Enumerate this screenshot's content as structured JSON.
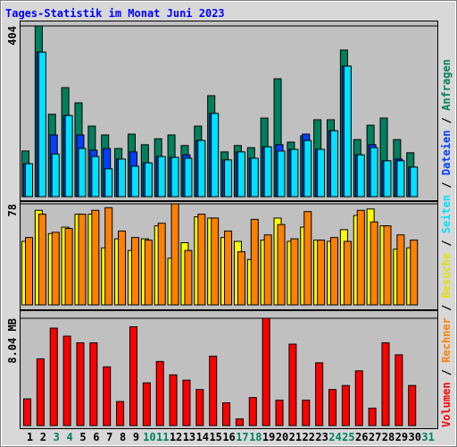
{
  "chart_data": {
    "type": "bar",
    "title": "Tages-Statistik im Monat Juni 2023",
    "categories": [
      "1",
      "2",
      "3",
      "4",
      "5",
      "6",
      "7",
      "8",
      "9",
      "10",
      "11",
      "12",
      "13",
      "14",
      "15",
      "16",
      "17",
      "18",
      "19",
      "20",
      "21",
      "22",
      "23",
      "24",
      "25",
      "26",
      "27",
      "28",
      "29",
      "30",
      "31"
    ],
    "category_colors": [
      "#000000",
      "#000000",
      "#00805c",
      "#00805c",
      "#000000",
      "#000000",
      "#000000",
      "#000000",
      "#000000",
      "#00805c",
      "#00805c",
      "#000000",
      "#000000",
      "#000000",
      "#000000",
      "#000000",
      "#00805c",
      "#00805c",
      "#000000",
      "#000000",
      "#000000",
      "#000000",
      "#000000",
      "#00805c",
      "#00805c",
      "#000000",
      "#000000",
      "#000000",
      "#000000",
      "#000000",
      "#00805c"
    ],
    "legend_separator": " / ",
    "panels": [
      {
        "ylim": [
          0,
          404
        ],
        "yticks": [
          404
        ],
        "series": [
          {
            "name": "Anfragen",
            "color": "#00805c",
            "values": [
              108,
              404,
              195,
              258,
              222,
              167,
              146,
              114,
              148,
              123,
              137,
              146,
              121,
              167,
              239,
              106,
              121,
              116,
              186,
              279,
              129,
              144,
              182,
              182,
              347,
              135,
              169,
              186,
              135,
              104,
              null
            ]
          },
          {
            "name": "Dateien",
            "color": "#0040ff",
            "values": [
              78,
              342,
              146,
              192,
              146,
              110,
              114,
              89,
              106,
              80,
              95,
              93,
              99,
              133,
              197,
              87,
              106,
              91,
              118,
              123,
              112,
              148,
              112,
              156,
              309,
              99,
              123,
              85,
              89,
              70,
              null
            ]
          },
          {
            "name": "Seiten",
            "color": "#00e0ff",
            "values": [
              78,
              342,
              101,
              192,
              114,
              95,
              66,
              89,
              72,
              80,
              95,
              93,
              91,
              133,
              197,
              87,
              106,
              91,
              118,
              108,
              112,
              133,
              112,
              156,
              309,
              99,
              116,
              85,
              85,
              70,
              null
            ]
          }
        ]
      },
      {
        "ylim": [
          0,
          78
        ],
        "yticks": [
          78
        ],
        "series": [
          {
            "name": "Besuche",
            "color": "#ffff00",
            "values": [
              49,
              73,
              55,
              60,
              70,
              70,
              44,
              51,
              42,
              51,
              61,
              36,
              48,
              68,
              67,
              52,
              49,
              35,
              50,
              67,
              49,
              60,
              50,
              49,
              58,
              69,
              74,
              61,
              43,
              44,
              null
            ]
          },
          {
            "name": "Rechner",
            "color": "#ff8000",
            "values": [
              52,
              70,
              56,
              59,
              70,
              73,
              75,
              57,
              52,
              50,
              63,
              78,
              42,
              70,
              67,
              57,
              41,
              66,
              54,
              62,
              51,
              72,
              50,
              52,
              49,
              73,
              64,
              61,
              54,
              50,
              null
            ]
          }
        ]
      },
      {
        "ylim": [
          0,
          8.04
        ],
        "yticks": [
          {
            "value": 8.04,
            "label": "8.04 MB"
          }
        ],
        "series": [
          {
            "name": "Volumen",
            "color": "#ff0000",
            "values": [
              2.0,
              5.0,
              7.3,
              6.7,
              6.2,
              6.2,
              4.4,
              1.8,
              7.4,
              3.2,
              4.8,
              3.8,
              3.4,
              2.7,
              5.2,
              1.7,
              0.5,
              2.1,
              8.04,
              1.9,
              6.1,
              1.9,
              4.7,
              2.7,
              3.0,
              4.1,
              1.3,
              6.2,
              5.3,
              3.0,
              null
            ]
          }
        ]
      }
    ]
  }
}
